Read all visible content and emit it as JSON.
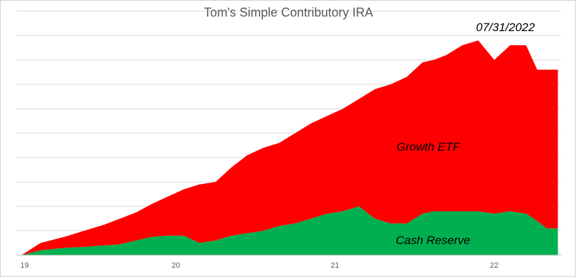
{
  "chart_data": {
    "type": "area",
    "stacked": true,
    "title": "Tom's Simple Contributory IRA",
    "annotation": "07/31/2022",
    "xlabel": "",
    "ylabel": "",
    "xlim": [
      19,
      22.42
    ],
    "ylim": [
      0,
      100
    ],
    "grid": true,
    "legend": "none",
    "x_ticks": [
      "19",
      "20",
      "21",
      "22"
    ],
    "x": [
      19.03,
      19.15,
      19.3,
      19.45,
      19.55,
      19.65,
      19.75,
      19.85,
      19.95,
      20.05,
      20.15,
      20.25,
      20.35,
      20.45,
      20.55,
      20.65,
      20.75,
      20.85,
      20.95,
      21.05,
      21.15,
      21.25,
      21.35,
      21.45,
      21.55,
      21.62,
      21.7,
      21.8,
      21.9,
      22.0,
      22.1,
      22.2,
      22.27,
      22.33,
      22.4
    ],
    "series": [
      {
        "name": "Cash Reserve",
        "color": "#00b050",
        "values": [
          0,
          2,
          3,
          3.5,
          4,
          4.5,
          6,
          7.5,
          8,
          8,
          5,
          6,
          8,
          9,
          10,
          12,
          13,
          15,
          17,
          18,
          20,
          15,
          13,
          13,
          17,
          18,
          18,
          18,
          18,
          17,
          18,
          17,
          14,
          11,
          11
        ]
      },
      {
        "name": "Growth ETF",
        "color": "#ff0000",
        "values": [
          0,
          3,
          4.5,
          7,
          8.5,
          10.5,
          11.5,
          13.5,
          16,
          19,
          24,
          24,
          28,
          32,
          34,
          34,
          37,
          39,
          40,
          42,
          44,
          53,
          57,
          60,
          62,
          62,
          64,
          68,
          70,
          63,
          68,
          69,
          62,
          65,
          65
        ]
      }
    ],
    "series_labels": [
      "Growth ETF",
      "Cash Reserve"
    ]
  }
}
